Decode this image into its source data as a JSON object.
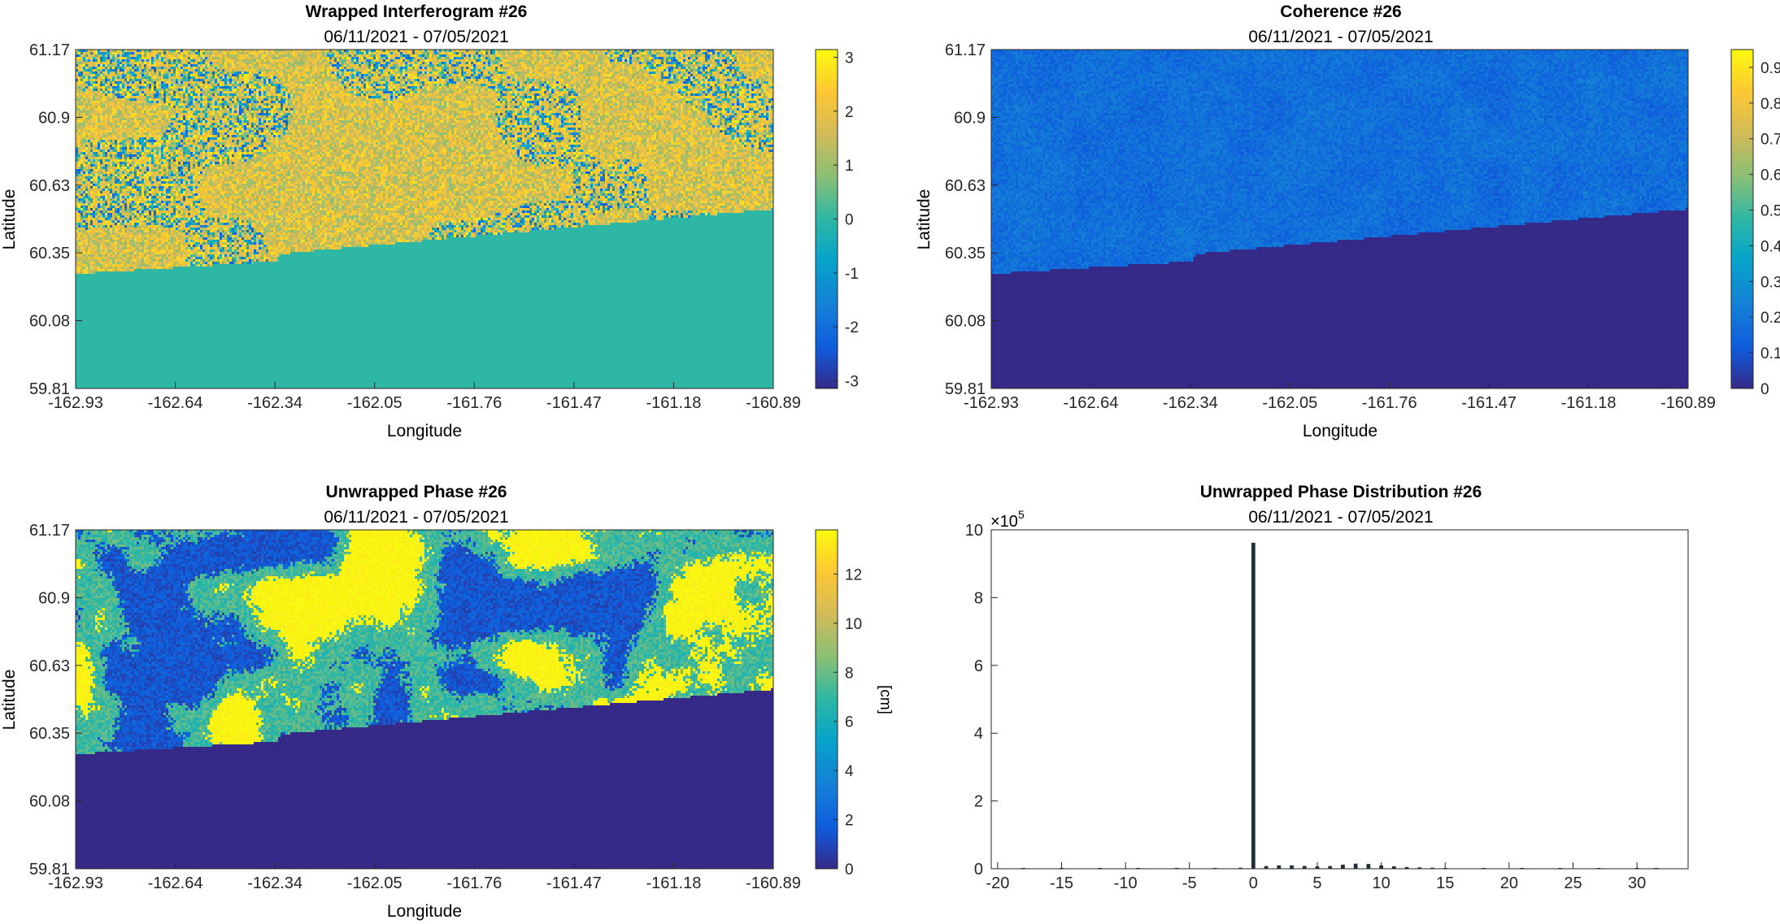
{
  "figure": {
    "background": "#ffffff",
    "plot_border_color": "#262626",
    "text_color": "#262626"
  },
  "chart_data": [
    {
      "type": "heatmap",
      "title": "Wrapped Interferogram #26",
      "subtitle": "06/11/2021 - 07/05/2021",
      "xlabel": "Longitude",
      "ylabel": "Latitude",
      "xlim": [
        -162.93,
        -160.89
      ],
      "ylim": [
        59.81,
        61.17
      ],
      "xticks": [
        "-162.93",
        "-162.64",
        "-162.34",
        "-162.05",
        "-161.76",
        "-161.47",
        "-161.18",
        "-160.89"
      ],
      "yticks": [
        "61.17",
        "60.9",
        "60.63",
        "60.35",
        "60.08",
        "59.81"
      ],
      "colorbar": {
        "colormap": "parula",
        "range": [
          -3.1416,
          3.1416
        ],
        "ticks": [
          "3",
          "2",
          "1",
          "0",
          "-1",
          "-2",
          "-3"
        ],
        "tick_values": [
          3,
          2,
          1,
          0,
          -1,
          -2,
          -3
        ],
        "label": ""
      },
      "no_data_value": 0,
      "valid_region_boundary": [
        [
          -162.93,
          60.27
        ],
        [
          -162.34,
          60.32
        ],
        [
          -162.33,
          60.35
        ],
        [
          -160.89,
          60.53
        ]
      ],
      "texture": "noisy"
    },
    {
      "type": "heatmap",
      "title": "Coherence #26",
      "subtitle": "06/11/2021 - 07/05/2021",
      "xlabel": "Longitude",
      "ylabel": "Latitude",
      "xlim": [
        -162.93,
        -160.89
      ],
      "ylim": [
        59.81,
        61.17
      ],
      "xticks": [
        "-162.93",
        "-162.64",
        "-162.34",
        "-162.05",
        "-161.76",
        "-161.47",
        "-161.18",
        "-160.89"
      ],
      "yticks": [
        "61.17",
        "60.9",
        "60.63",
        "60.35",
        "60.08",
        "59.81"
      ],
      "colorbar": {
        "colormap": "parula",
        "range": [
          0,
          0.95
        ],
        "ticks": [
          "0.9",
          "0.8",
          "0.7",
          "0.6",
          "0.5",
          "0.4",
          "0.3",
          "0.2",
          "0.1",
          "0"
        ],
        "tick_values": [
          0.9,
          0.8,
          0.7,
          0.6,
          0.5,
          0.4,
          0.3,
          0.2,
          0.1,
          0
        ],
        "label": ""
      },
      "no_data_value": 0,
      "valid_region_boundary": [
        [
          -162.93,
          60.27
        ],
        [
          -162.34,
          60.32
        ],
        [
          -162.33,
          60.35
        ],
        [
          -160.89,
          60.53
        ]
      ],
      "texture": "low"
    },
    {
      "type": "heatmap",
      "title": "Unwrapped Phase #26",
      "subtitle": "06/11/2021 - 07/05/2021",
      "xlabel": "Longitude",
      "ylabel": "Latitude",
      "xlim": [
        -162.93,
        -160.89
      ],
      "ylim": [
        59.81,
        61.17
      ],
      "xticks": [
        "-162.93",
        "-162.64",
        "-162.34",
        "-162.05",
        "-161.76",
        "-161.47",
        "-161.18",
        "-160.89"
      ],
      "yticks": [
        "61.17",
        "60.9",
        "60.63",
        "60.35",
        "60.08",
        "59.81"
      ],
      "colorbar": {
        "colormap": "parula",
        "range": [
          0,
          13.8
        ],
        "ticks": [
          "12",
          "10",
          "8",
          "6",
          "4",
          "2",
          "0"
        ],
        "tick_values": [
          12,
          10,
          8,
          6,
          4,
          2,
          0
        ],
        "label": "[cm]"
      },
      "no_data_value": 0,
      "valid_region_boundary": [
        [
          -162.93,
          60.27
        ],
        [
          -162.34,
          60.32
        ],
        [
          -162.33,
          60.35
        ],
        [
          -160.89,
          60.53
        ]
      ],
      "texture": "blobs"
    },
    {
      "type": "bar",
      "title": "Unwrapped Phase Distribution #26",
      "subtitle": "06/11/2021 - 07/05/2021",
      "xlabel": "",
      "ylabel": "",
      "y_exponent_label": "×10",
      "y_exponent": "5",
      "xlim": [
        -20.5,
        34
      ],
      "ylim": [
        0,
        10
      ],
      "xticks": [
        "-20",
        "-15",
        "-10",
        "-5",
        "0",
        "5",
        "10",
        "15",
        "20",
        "25",
        "30"
      ],
      "xtick_values": [
        -20,
        -15,
        -10,
        -5,
        0,
        5,
        10,
        15,
        20,
        25,
        30
      ],
      "yticks": [
        "10",
        "8",
        "6",
        "4",
        "2",
        "0"
      ],
      "ytick_values": [
        10,
        8,
        6,
        4,
        2,
        0
      ],
      "bar_color": "#1f2f3f",
      "bin_width": 0.3,
      "x": [
        -18,
        -15,
        -12,
        -9,
        -6,
        -3,
        -1,
        0,
        1,
        2,
        3,
        4,
        5,
        6,
        7,
        8,
        9,
        10,
        11,
        12,
        13,
        14,
        15,
        18,
        21,
        24,
        27,
        30,
        31.5
      ],
      "values": [
        0.01,
        0.01,
        0.01,
        0.01,
        0.01,
        0.02,
        0.03,
        9.62,
        0.08,
        0.1,
        0.1,
        0.08,
        0.07,
        0.08,
        0.12,
        0.15,
        0.14,
        0.1,
        0.07,
        0.05,
        0.04,
        0.03,
        0.02,
        0.01,
        0.01,
        0.01,
        0.01,
        0.01,
        0.01
      ]
    }
  ]
}
